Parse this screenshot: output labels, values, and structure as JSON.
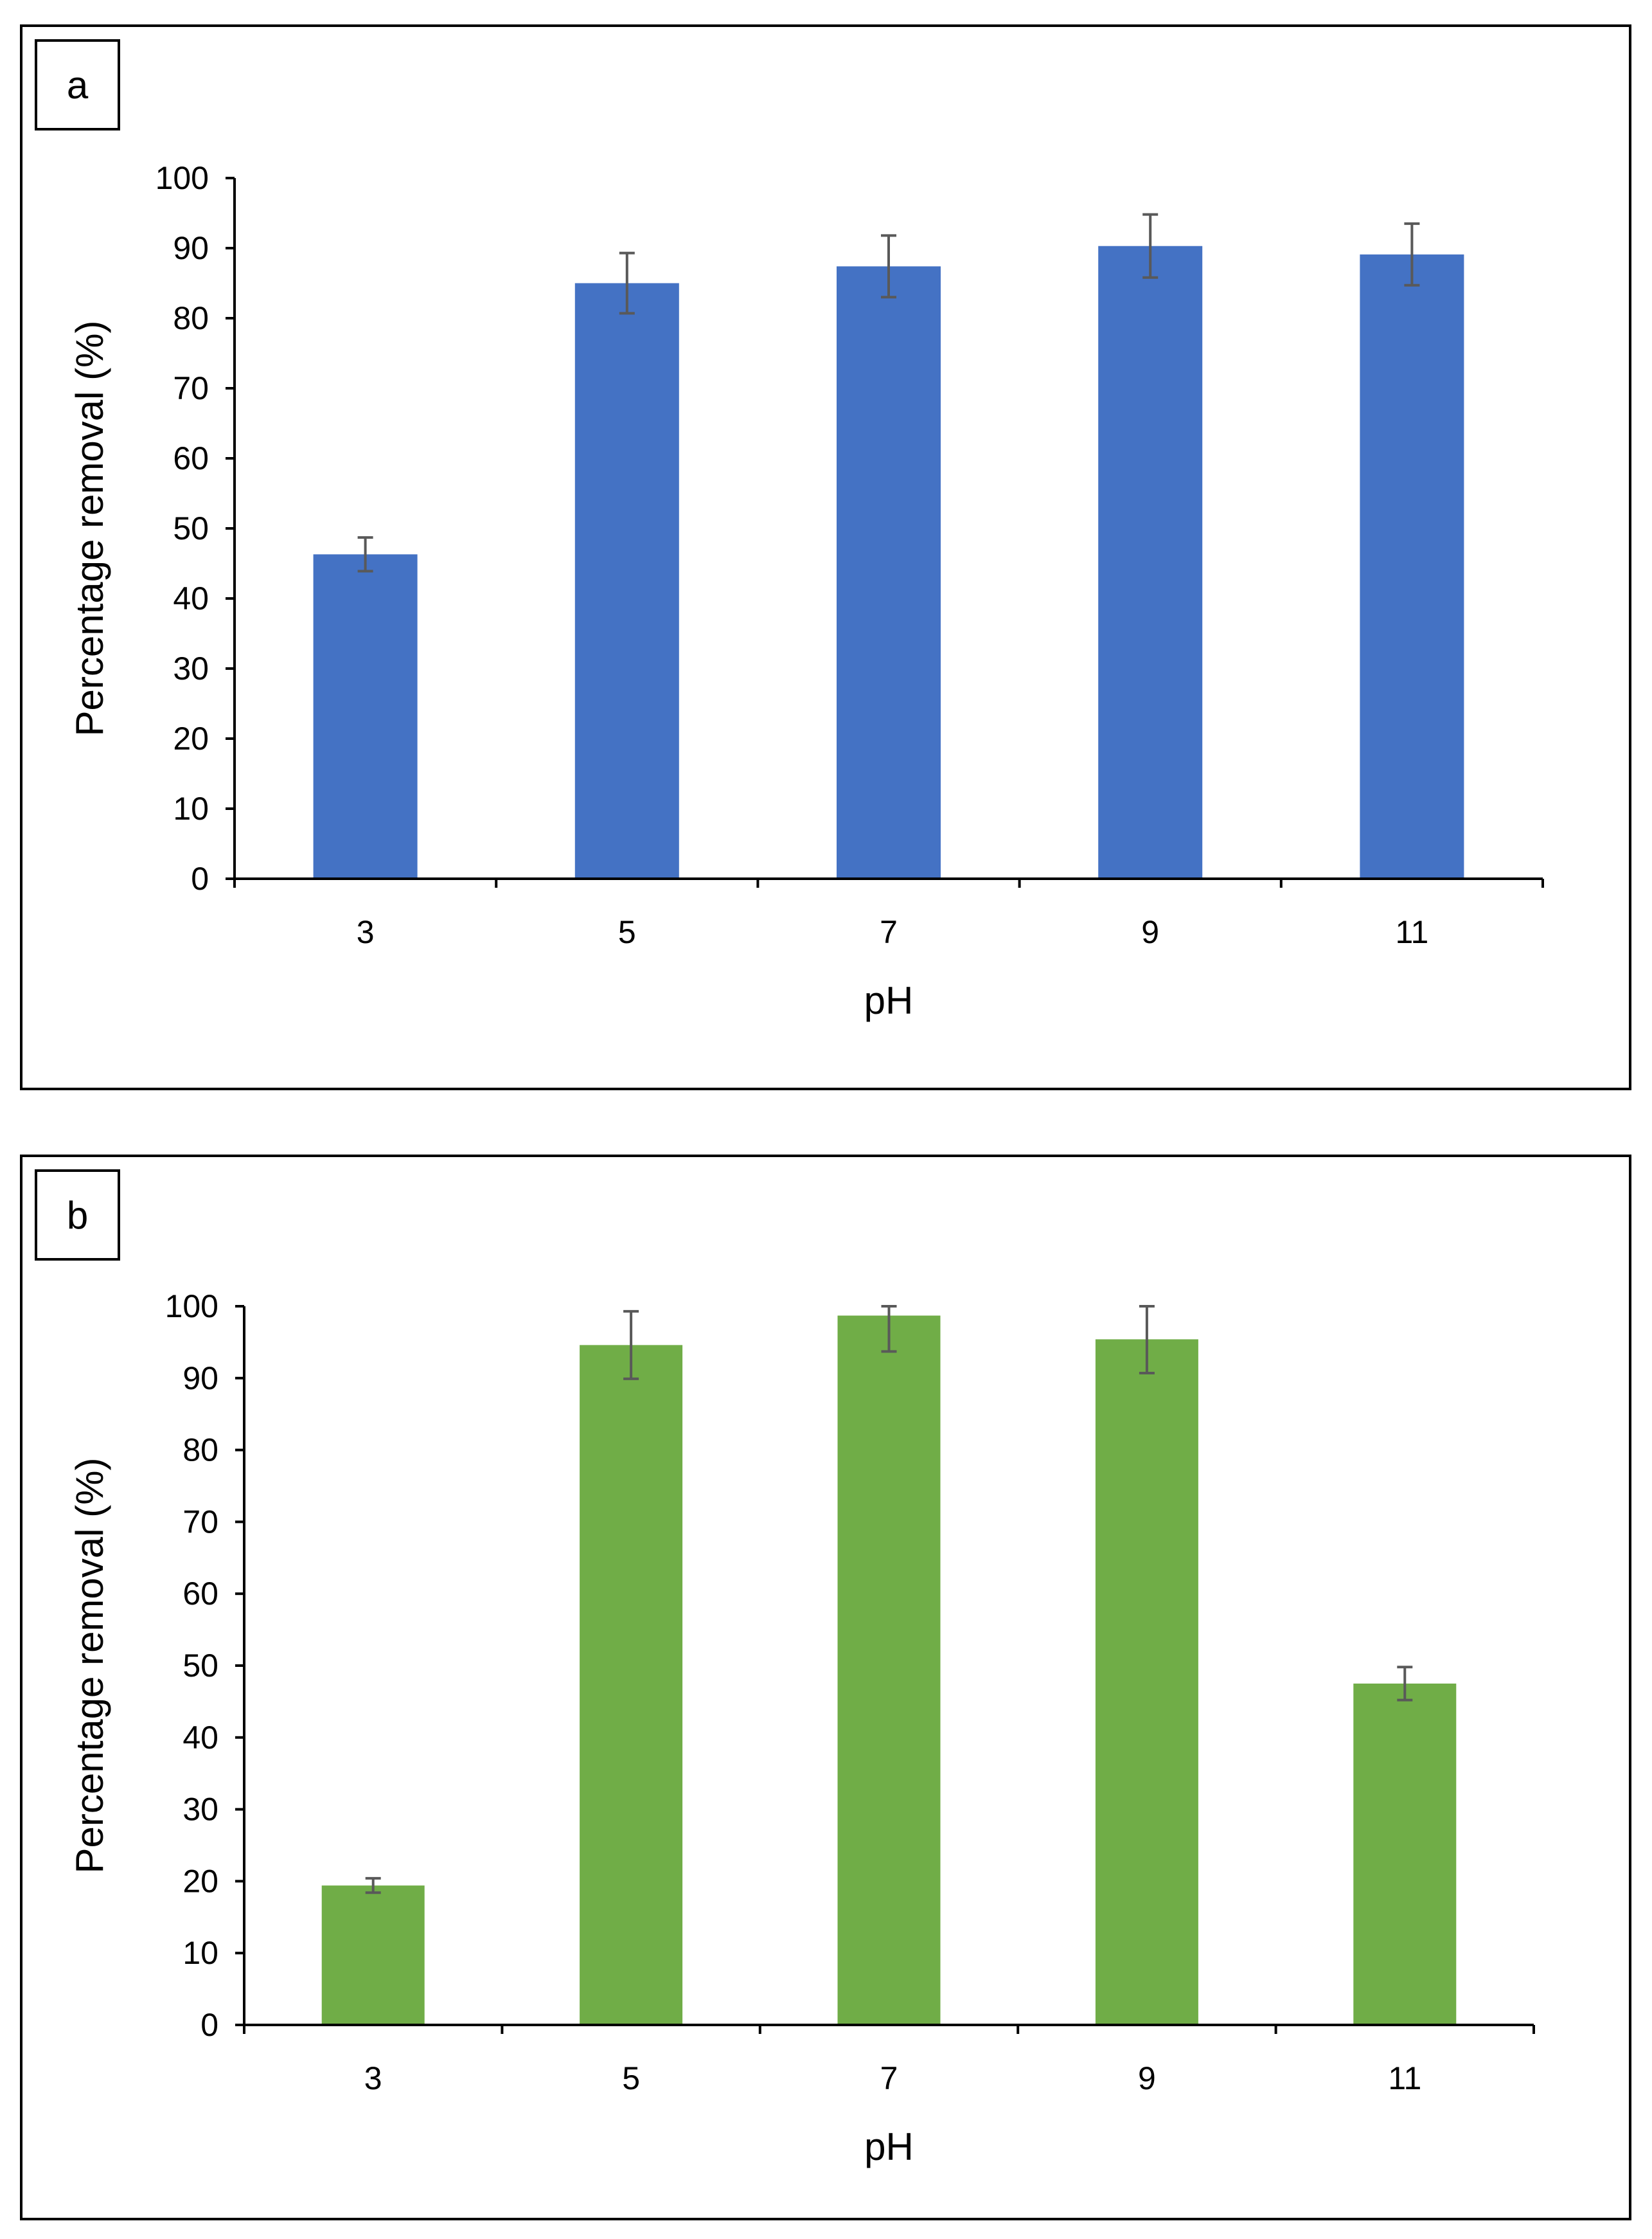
{
  "chart_data": [
    {
      "id": "a",
      "type": "bar",
      "panel_label": "a",
      "title": "",
      "categories": [
        "3",
        "5",
        "7",
        "9",
        "11"
      ],
      "values": [
        46.3,
        85.0,
        87.4,
        90.3,
        89.1
      ],
      "errors": [
        2.4,
        4.3,
        4.4,
        4.5,
        4.4
      ],
      "xlabel": "pH",
      "ylabel": "Percentage removal (%)",
      "ylim": [
        0,
        100
      ],
      "yticks": [
        0,
        10,
        20,
        30,
        40,
        50,
        60,
        70,
        80,
        90,
        100
      ],
      "grid": false,
      "bar_color": "#4472C4"
    },
    {
      "id": "b",
      "type": "bar",
      "panel_label": "b",
      "title": "",
      "categories": [
        "3",
        "5",
        "7",
        "9",
        "11"
      ],
      "values": [
        19.4,
        94.6,
        98.7,
        95.4,
        47.5
      ],
      "errors": [
        1.0,
        4.7,
        5.0,
        4.7,
        2.3
      ],
      "xlabel": "pH",
      "ylabel": "Percentage removal (%)",
      "ylim": [
        0,
        100
      ],
      "yticks": [
        0,
        10,
        20,
        30,
        40,
        50,
        60,
        70,
        80,
        90,
        100
      ],
      "grid": false,
      "bar_color": "#70AD47"
    }
  ]
}
